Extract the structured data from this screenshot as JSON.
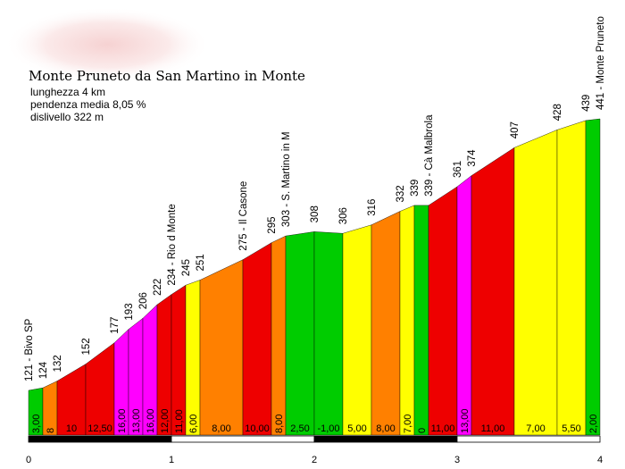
{
  "chart_data": {
    "type": "area",
    "title": "Monte Pruneto da San Martino in Monte",
    "stats": [
      "lunghezza 4 km",
      "pendenza media 8,05 %",
      "dislivello 322 m"
    ],
    "xlim": [
      0,
      4
    ],
    "ylim": [
      0,
      441
    ],
    "x_ticks": [
      "0",
      "1",
      "2",
      "3",
      "4"
    ],
    "segments": [
      {
        "x0": 0.0,
        "x1": 0.1,
        "y0": 121,
        "y1": 124,
        "grade": "3,00",
        "color": "#00cc00"
      },
      {
        "x0": 0.1,
        "x1": 0.2,
        "y0": 124,
        "y1": 132,
        "grade": "8",
        "color": "#ff8000"
      },
      {
        "x0": 0.2,
        "x1": 0.4,
        "y0": 132,
        "y1": 152,
        "grade": "10",
        "color": "#ee0000"
      },
      {
        "x0": 0.4,
        "x1": 0.6,
        "y0": 152,
        "y1": 177,
        "grade": "12,50",
        "color": "#ee0000"
      },
      {
        "x0": 0.6,
        "x1": 0.7,
        "y0": 177,
        "y1": 193,
        "grade": "16,00",
        "color": "#ff00ff"
      },
      {
        "x0": 0.7,
        "x1": 0.8,
        "y0": 193,
        "y1": 206,
        "grade": "13,00",
        "color": "#ff00ff"
      },
      {
        "x0": 0.8,
        "x1": 0.9,
        "y0": 206,
        "y1": 222,
        "grade": "16,00",
        "color": "#ff00ff"
      },
      {
        "x0": 0.9,
        "x1": 1.0,
        "y0": 222,
        "y1": 234,
        "grade": "12,00",
        "color": "#ee0000"
      },
      {
        "x0": 1.0,
        "x1": 1.1,
        "y0": 234,
        "y1": 245,
        "grade": "11,00",
        "color": "#ee0000"
      },
      {
        "x0": 1.1,
        "x1": 1.2,
        "y0": 245,
        "y1": 251,
        "grade": "6,00",
        "color": "#ffff00"
      },
      {
        "x0": 1.2,
        "x1": 1.5,
        "y0": 251,
        "y1": 275,
        "grade": "8,00",
        "color": "#ff8000"
      },
      {
        "x0": 1.5,
        "x1": 1.7,
        "y0": 275,
        "y1": 295,
        "grade": "10,00",
        "color": "#ee0000"
      },
      {
        "x0": 1.7,
        "x1": 1.8,
        "y0": 295,
        "y1": 303,
        "grade": "8,00",
        "color": "#ff8000"
      },
      {
        "x0": 1.8,
        "x1": 2.0,
        "y0": 303,
        "y1": 308,
        "grade": "2,50",
        "color": "#00cc00"
      },
      {
        "x0": 2.0,
        "x1": 2.2,
        "y0": 308,
        "y1": 306,
        "grade": "-1,00",
        "color": "#00cc00"
      },
      {
        "x0": 2.2,
        "x1": 2.4,
        "y0": 306,
        "y1": 316,
        "grade": "5,00",
        "color": "#ffff00"
      },
      {
        "x0": 2.4,
        "x1": 2.6,
        "y0": 316,
        "y1": 332,
        "grade": "8,00",
        "color": "#ff8000"
      },
      {
        "x0": 2.6,
        "x1": 2.7,
        "y0": 332,
        "y1": 339,
        "grade": "7,00",
        "color": "#ffff00"
      },
      {
        "x0": 2.7,
        "x1": 2.8,
        "y0": 339,
        "y1": 339,
        "grade": "0",
        "color": "#00cc00"
      },
      {
        "x0": 2.8,
        "x1": 3.0,
        "y0": 339,
        "y1": 361,
        "grade": "11,00",
        "color": "#ee0000"
      },
      {
        "x0": 3.0,
        "x1": 3.1,
        "y0": 361,
        "y1": 374,
        "grade": "13,00",
        "color": "#ff00ff"
      },
      {
        "x0": 3.1,
        "x1": 3.4,
        "y0": 374,
        "y1": 407,
        "grade": "11,00",
        "color": "#ee0000"
      },
      {
        "x0": 3.4,
        "x1": 3.7,
        "y0": 407,
        "y1": 428,
        "grade": "7,00",
        "color": "#ffff00"
      },
      {
        "x0": 3.7,
        "x1": 3.9,
        "y0": 428,
        "y1": 439,
        "grade": "5,50",
        "color": "#ffff00"
      },
      {
        "x0": 3.9,
        "x1": 4.0,
        "y0": 439,
        "y1": 441,
        "grade": "2,00",
        "color": "#00cc00"
      }
    ],
    "elevation_labels": [
      {
        "x": 0.0,
        "y": 121,
        "text": "121 - Bivo SP"
      },
      {
        "x": 0.1,
        "y": 124,
        "text": "124"
      },
      {
        "x": 0.2,
        "y": 132,
        "text": "132"
      },
      {
        "x": 0.4,
        "y": 152,
        "text": "152"
      },
      {
        "x": 0.6,
        "y": 177,
        "text": "177"
      },
      {
        "x": 0.7,
        "y": 193,
        "text": "193"
      },
      {
        "x": 0.8,
        "y": 206,
        "text": "206"
      },
      {
        "x": 0.9,
        "y": 222,
        "text": "222"
      },
      {
        "x": 1.0,
        "y": 234,
        "text": "234 - Rio d Monte"
      },
      {
        "x": 1.1,
        "y": 245,
        "text": "245"
      },
      {
        "x": 1.2,
        "y": 251,
        "text": "251"
      },
      {
        "x": 1.5,
        "y": 275,
        "text": "275 - Il Casone"
      },
      {
        "x": 1.7,
        "y": 295,
        "text": "295"
      },
      {
        "x": 1.8,
        "y": 303,
        "text": "303 - S. Martino in M"
      },
      {
        "x": 2.0,
        "y": 308,
        "text": "308"
      },
      {
        "x": 2.2,
        "y": 306,
        "text": "306"
      },
      {
        "x": 2.4,
        "y": 316,
        "text": "316"
      },
      {
        "x": 2.6,
        "y": 332,
        "text": "332"
      },
      {
        "x": 2.7,
        "y": 339,
        "text": "339"
      },
      {
        "x": 2.8,
        "y": 339,
        "text": "339 - Cà Malbrola"
      },
      {
        "x": 3.0,
        "y": 361,
        "text": "361"
      },
      {
        "x": 3.1,
        "y": 374,
        "text": "374"
      },
      {
        "x": 3.4,
        "y": 407,
        "text": "407"
      },
      {
        "x": 3.7,
        "y": 428,
        "text": "428"
      },
      {
        "x": 3.9,
        "y": 439,
        "text": "439"
      },
      {
        "x": 4.0,
        "y": 441,
        "text": "441 - Monte Pruneto"
      }
    ]
  }
}
